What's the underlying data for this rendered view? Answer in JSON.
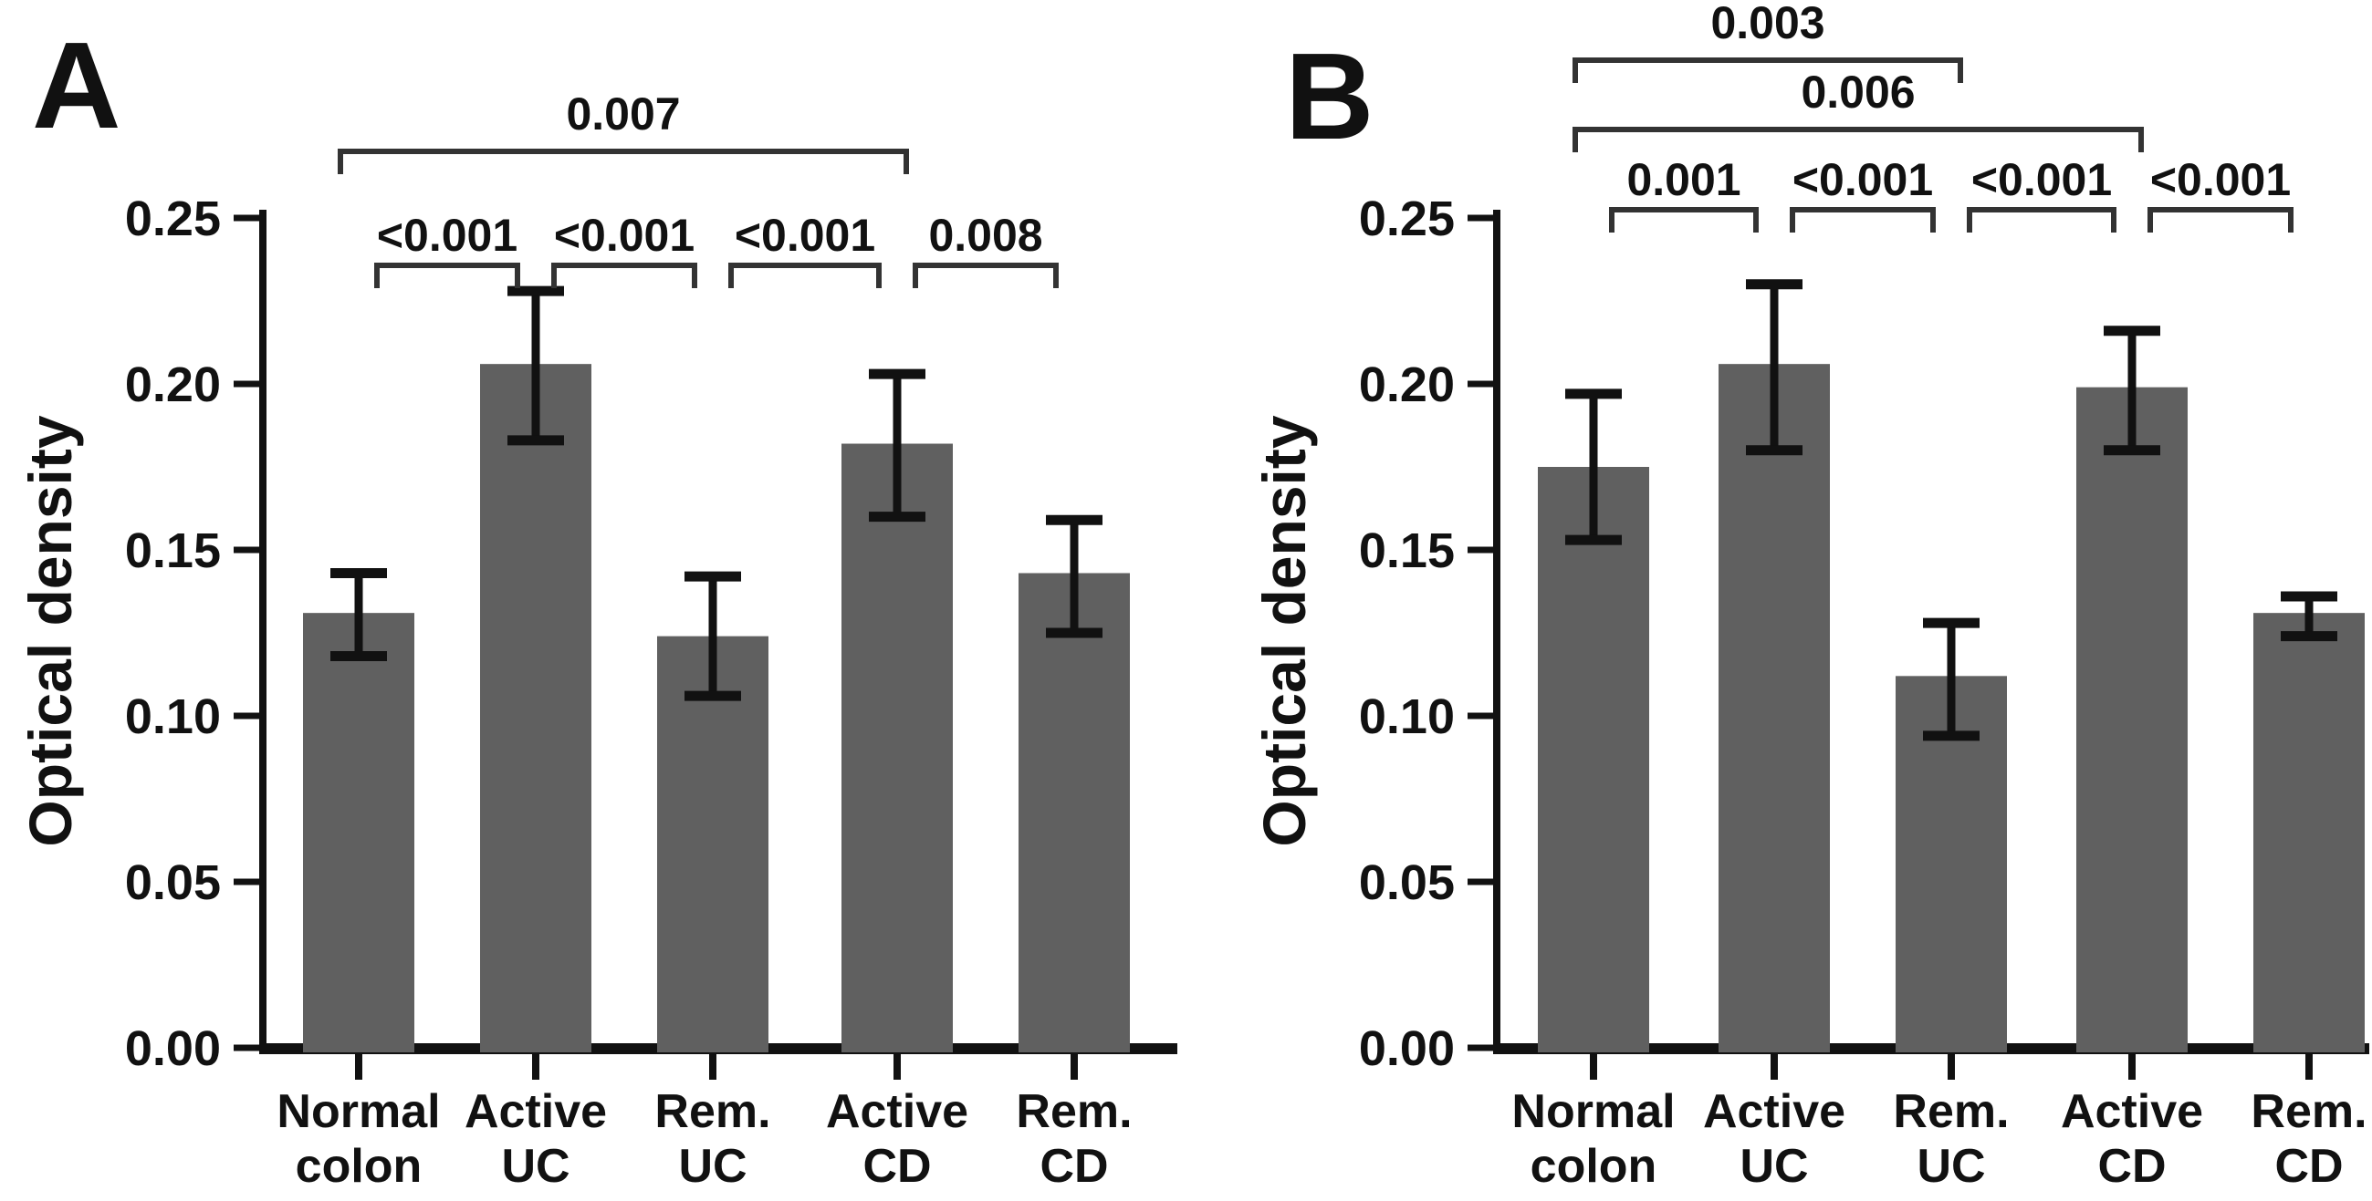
{
  "figure": {
    "background": "#ffffff",
    "bar_color": "#606060",
    "axis_color": "#111111",
    "error_bar_color": "#111111",
    "bracket_color": "#333333",
    "text_color": "#111111"
  },
  "chart_data": [
    {
      "type": "bar",
      "panel": "A",
      "title": "",
      "xlabel": "",
      "ylabel": "Optical density",
      "ylim": [
        0,
        0.25
      ],
      "ytick_step": 0.05,
      "ytick_labels": [
        "0.00",
        "0.05",
        "0.10",
        "0.15",
        "0.20",
        "0.25"
      ],
      "grid": false,
      "legend": "none",
      "categories": [
        "Normal colon",
        "Active UC",
        "Rem. UC",
        "Active CD",
        "Rem. CD"
      ],
      "category_lines": [
        [
          "Normal",
          "colon"
        ],
        [
          "Active",
          "UC"
        ],
        [
          "Rem.",
          "UC"
        ],
        [
          "Active",
          "CD"
        ],
        [
          "Rem.",
          "CD"
        ]
      ],
      "values": [
        0.131,
        0.206,
        0.124,
        0.182,
        0.143
      ],
      "error_low": [
        0.118,
        0.183,
        0.106,
        0.16,
        0.125
      ],
      "error_high": [
        0.143,
        0.228,
        0.142,
        0.203,
        0.159
      ],
      "significance_brackets": [
        {
          "label": "<0.001",
          "from": 0,
          "to": 1,
          "tier": 1
        },
        {
          "label": "<0.001",
          "from": 1,
          "to": 2,
          "tier": 1
        },
        {
          "label": "<0.001",
          "from": 2,
          "to": 3,
          "tier": 1
        },
        {
          "label": "0.008",
          "from": 3,
          "to": 4,
          "tier": 1
        },
        {
          "label": "0.007",
          "from": 0,
          "to": 3,
          "tier": 2
        }
      ]
    },
    {
      "type": "bar",
      "panel": "B",
      "title": "",
      "xlabel": "",
      "ylabel": "Optical density",
      "ylim": [
        0,
        0.25
      ],
      "ytick_step": 0.05,
      "ytick_labels": [
        "0.00",
        "0.05",
        "0.10",
        "0.15",
        "0.20",
        "0.25"
      ],
      "grid": false,
      "legend": "none",
      "categories": [
        "Normal colon",
        "Active UC",
        "Rem. UC",
        "Active CD",
        "Rem. CD"
      ],
      "category_lines": [
        [
          "Normal",
          "colon"
        ],
        [
          "Active",
          "UC"
        ],
        [
          "Rem.",
          "UC"
        ],
        [
          "Active",
          "CD"
        ],
        [
          "Rem.",
          "CD"
        ]
      ],
      "values": [
        0.175,
        0.206,
        0.112,
        0.199,
        0.131
      ],
      "error_low": [
        0.153,
        0.18,
        0.094,
        0.18,
        0.124
      ],
      "error_high": [
        0.197,
        0.23,
        0.128,
        0.216,
        0.136
      ],
      "significance_brackets": [
        {
          "label": "0.001",
          "from": 0,
          "to": 1,
          "tier": 1
        },
        {
          "label": "<0.001",
          "from": 1,
          "to": 2,
          "tier": 1
        },
        {
          "label": "<0.001",
          "from": 2,
          "to": 3,
          "tier": 1
        },
        {
          "label": "<0.001",
          "from": 3,
          "to": 4,
          "tier": 1
        },
        {
          "label": "0.006",
          "from": 0,
          "to": 3,
          "tier": 2
        },
        {
          "label": "0.003",
          "from": 0,
          "to": 2,
          "tier": 3
        }
      ]
    }
  ]
}
